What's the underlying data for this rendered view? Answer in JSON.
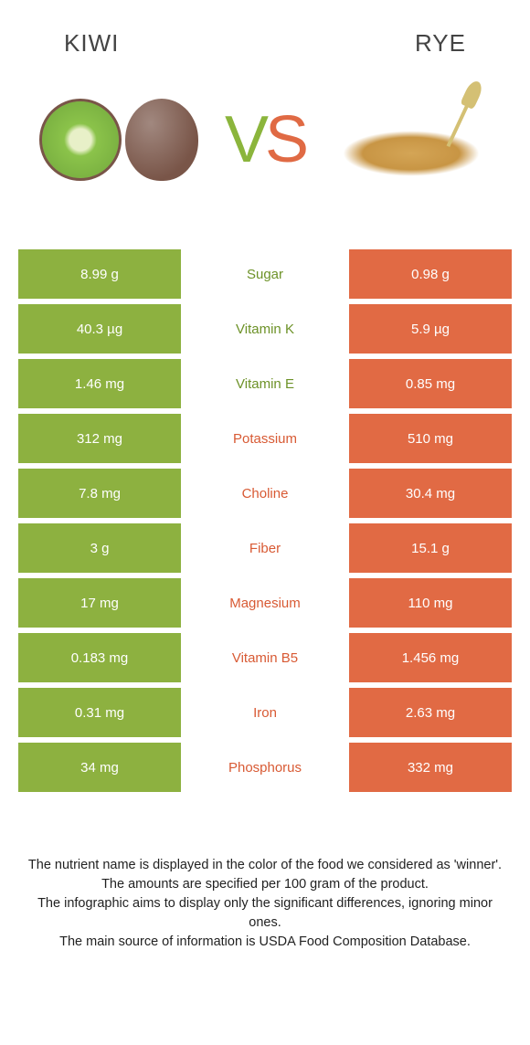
{
  "header": {
    "left_title": "Kiwi",
    "right_title": "Rye"
  },
  "vs": {
    "v": "V",
    "s": "S"
  },
  "colors": {
    "green_bg": "#8db140",
    "orange_bg": "#e16a44",
    "green_txt": "#6d9228",
    "orange_txt": "#d85a34",
    "page_bg": "#ffffff"
  },
  "comparison": {
    "rows": [
      {
        "nutrient": "Sugar",
        "left": "8.99 g",
        "right": "0.98 g",
        "winner": "left"
      },
      {
        "nutrient": "Vitamin K",
        "left": "40.3 µg",
        "right": "5.9 µg",
        "winner": "left"
      },
      {
        "nutrient": "Vitamin E",
        "left": "1.46 mg",
        "right": "0.85 mg",
        "winner": "left"
      },
      {
        "nutrient": "Potassium",
        "left": "312 mg",
        "right": "510 mg",
        "winner": "right"
      },
      {
        "nutrient": "Choline",
        "left": "7.8 mg",
        "right": "30.4 mg",
        "winner": "right"
      },
      {
        "nutrient": "Fiber",
        "left": "3 g",
        "right": "15.1 g",
        "winner": "right"
      },
      {
        "nutrient": "Magnesium",
        "left": "17 mg",
        "right": "110 mg",
        "winner": "right"
      },
      {
        "nutrient": "Vitamin B5",
        "left": "0.183 mg",
        "right": "1.456 mg",
        "winner": "right"
      },
      {
        "nutrient": "Iron",
        "left": "0.31 mg",
        "right": "2.63 mg",
        "winner": "right"
      },
      {
        "nutrient": "Phosphorus",
        "left": "34 mg",
        "right": "332 mg",
        "winner": "right"
      }
    ]
  },
  "footnotes": {
    "l1": "The nutrient name is displayed in the color of the food we considered as 'winner'.",
    "l2": "The amounts are specified per 100 gram of the product.",
    "l3": "The infographic aims to display only the significant differences, ignoring minor ones.",
    "l4": "The main source of information is USDA Food Composition Database."
  }
}
